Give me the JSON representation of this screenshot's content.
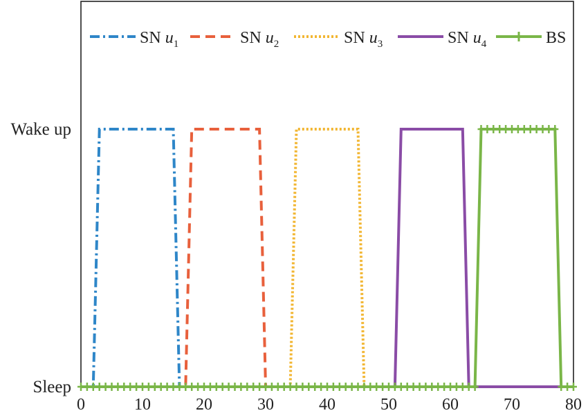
{
  "chart_data": {
    "type": "line",
    "title": "",
    "xlabel": "",
    "ylabel": "",
    "xlim": [
      0,
      80
    ],
    "x_ticks": [
      0,
      10,
      20,
      30,
      40,
      50,
      60,
      70,
      80
    ],
    "y_categories": [
      "Sleep",
      "Wake up"
    ],
    "grid": false,
    "legend_position": "top",
    "series": [
      {
        "name": "SN u1",
        "legend_main": "SN ",
        "legend_var": "u",
        "legend_sub": "1",
        "color": "#2e86c8",
        "style": "dash-dot",
        "points": [
          [
            0,
            0
          ],
          [
            2,
            0
          ],
          [
            3,
            1
          ],
          [
            15,
            1
          ],
          [
            16,
            0
          ],
          [
            80,
            0
          ]
        ]
      },
      {
        "name": "SN u2",
        "legend_main": "SN ",
        "legend_var": "u",
        "legend_sub": "2",
        "color": "#e8603c",
        "style": "dashed",
        "points": [
          [
            0,
            0
          ],
          [
            17,
            0
          ],
          [
            18,
            1
          ],
          [
            29,
            1
          ],
          [
            30,
            0
          ],
          [
            80,
            0
          ]
        ]
      },
      {
        "name": "SN u3",
        "legend_main": "SN ",
        "legend_var": "u",
        "legend_sub": "3",
        "color": "#f2b632",
        "style": "dotted",
        "points": [
          [
            0,
            0
          ],
          [
            34,
            0
          ],
          [
            35,
            1
          ],
          [
            45,
            1
          ],
          [
            46,
            0
          ],
          [
            80,
            0
          ]
        ]
      },
      {
        "name": "SN u4",
        "legend_main": "SN ",
        "legend_var": "u",
        "legend_sub": "4",
        "color": "#8a4ca6",
        "style": "solid",
        "points": [
          [
            0,
            0
          ],
          [
            51,
            0
          ],
          [
            52,
            1
          ],
          [
            62,
            1
          ],
          [
            63,
            0
          ],
          [
            80,
            0
          ]
        ]
      },
      {
        "name": "BS",
        "legend_main": "BS",
        "legend_var": "",
        "legend_sub": "",
        "color": "#7ab648",
        "style": "solid-plus",
        "points": [
          [
            0,
            0
          ],
          [
            64,
            0
          ],
          [
            65,
            1
          ],
          [
            77,
            1
          ],
          [
            78,
            0
          ],
          [
            80,
            0
          ]
        ]
      }
    ]
  }
}
